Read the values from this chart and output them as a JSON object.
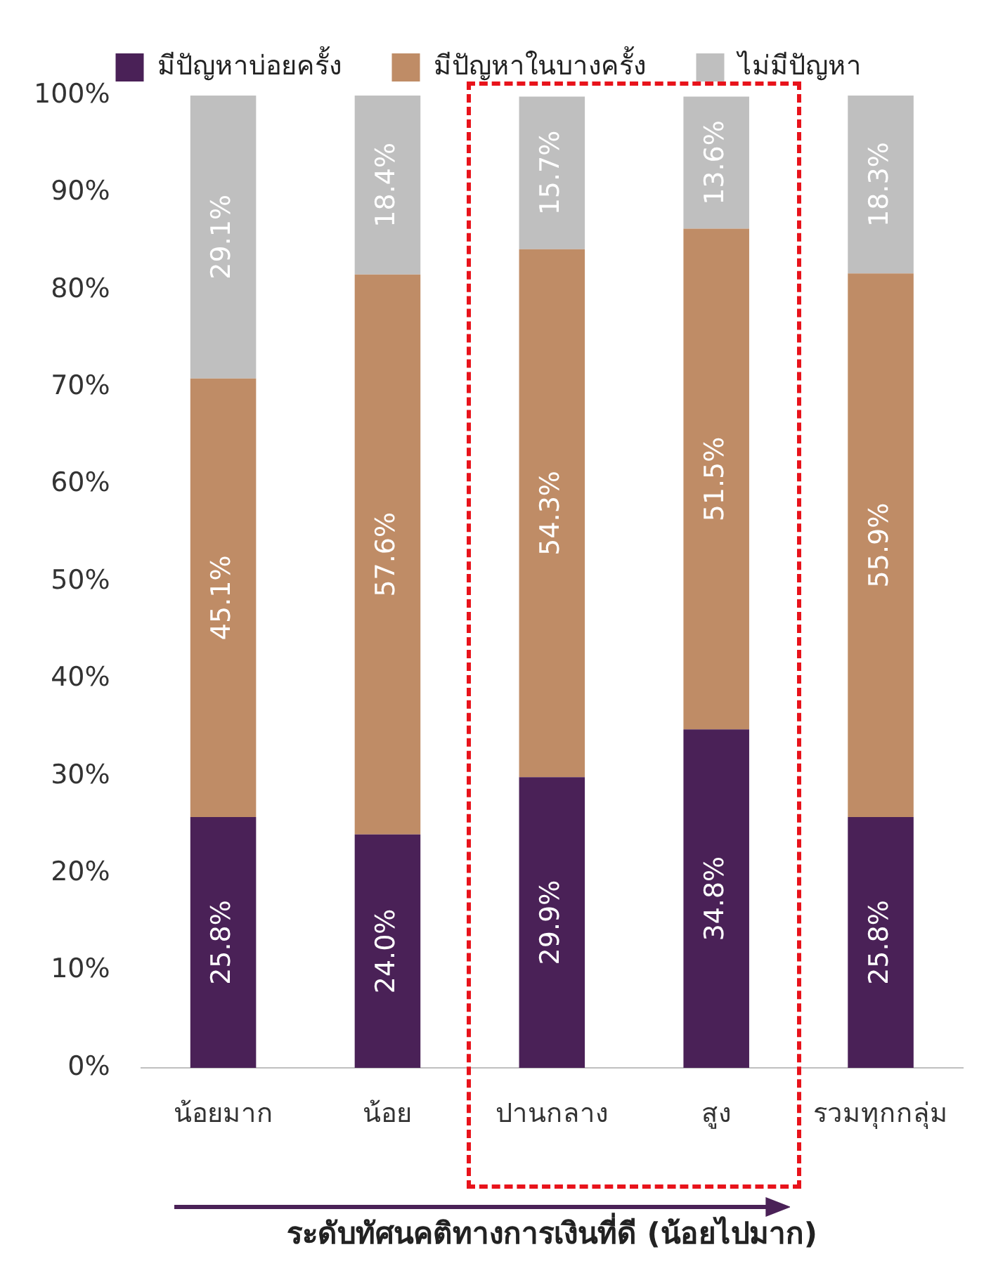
{
  "chart_data": {
    "type": "bar",
    "stacked": true,
    "xlabel": "ระดับทัศนคติทางการเงินที่ดี (น้อยไปมาก)",
    "categories": [
      "น้อยมาก",
      "น้อย",
      "ปานกลาง",
      "สูง",
      "รวมทุกกลุ่ม"
    ],
    "series": [
      {
        "name": "มีปัญหาบ่อยครั้ง",
        "color": "#4a2157",
        "values": [
          25.8,
          24.0,
          29.9,
          34.8,
          25.8
        ],
        "value_labels": [
          "25.8%",
          "24.0%",
          "29.9%",
          "34.8%",
          "25.8%"
        ]
      },
      {
        "name": "มีปัญหาในบางครั้ง",
        "color": "#bf8c66",
        "values": [
          45.1,
          57.6,
          54.3,
          51.5,
          55.9
        ],
        "value_labels": [
          "45.1%",
          "57.6%",
          "54.3%",
          "51.5%",
          "55.9%"
        ]
      },
      {
        "name": "ไม่มีปัญหา",
        "color": "#bfbfbf",
        "values": [
          29.1,
          18.4,
          15.7,
          13.6,
          18.3
        ],
        "value_labels": [
          "29.1%",
          "18.4%",
          "15.7%",
          "13.6%",
          "18.3%"
        ]
      }
    ],
    "ylim": [
      0,
      100
    ],
    "yticks": [
      {
        "value": 0,
        "label": "0%"
      },
      {
        "value": 10,
        "label": "10%"
      },
      {
        "value": 20,
        "label": "20%"
      },
      {
        "value": 30,
        "label": "30%"
      },
      {
        "value": 40,
        "label": "40%"
      },
      {
        "value": 50,
        "label": "50%"
      },
      {
        "value": 60,
        "label": "60%"
      },
      {
        "value": 70,
        "label": "70%"
      },
      {
        "value": 80,
        "label": "80%"
      },
      {
        "value": 90,
        "label": "90%"
      },
      {
        "value": 100,
        "label": "100%"
      }
    ],
    "grid": false,
    "legend": "top"
  }
}
